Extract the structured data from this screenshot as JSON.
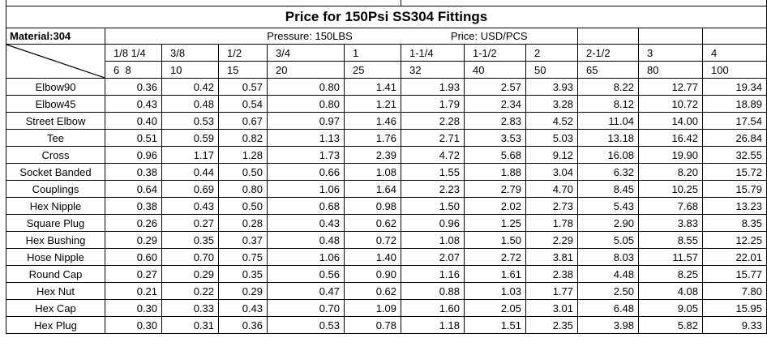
{
  "title": "Price for 150Psi SS304 Fittings",
  "material_label": "Material:304",
  "pressure_label": "Pressure: 150LBS",
  "price_label": "Price: USD/PCS",
  "sizes_inch": [
    "1/8 1/4",
    "3/8",
    "1/2",
    "3/4",
    "1",
    "1-1/4",
    "1-1/2",
    "2",
    "2-1/2",
    "3",
    "4"
  ],
  "sizes_mm": [
    "6  8",
    "10",
    "15",
    "20",
    "25",
    "32",
    "40",
    "50",
    "65",
    "80",
    "100"
  ],
  "rows": [
    {
      "name": "Elbow90",
      "prices": [
        "0.36",
        "0.42",
        "0.57",
        "0.80",
        "1.41",
        "1.93",
        "2.57",
        "3.93",
        "8.22",
        "12.77",
        "19.34"
      ]
    },
    {
      "name": "Elbow45",
      "prices": [
        "0.43",
        "0.48",
        "0.54",
        "0.80",
        "1.21",
        "1.79",
        "2.34",
        "3.28",
        "8.12",
        "10.72",
        "18.89"
      ]
    },
    {
      "name": "Street Elbow",
      "prices": [
        "0.40",
        "0.53",
        "0.67",
        "0.97",
        "1.46",
        "2.28",
        "2.83",
        "4.52",
        "11.04",
        "14.00",
        "17.54"
      ]
    },
    {
      "name": "Tee",
      "prices": [
        "0.51",
        "0.59",
        "0.82",
        "1.13",
        "1.76",
        "2.71",
        "3.53",
        "5.03",
        "13.18",
        "16.42",
        "26.84"
      ]
    },
    {
      "name": "Cross",
      "prices": [
        "0.96",
        "1.17",
        "1.28",
        "1.73",
        "2.39",
        "4.72",
        "5.68",
        "9.12",
        "16.08",
        "19.90",
        "32.55"
      ]
    },
    {
      "name": "Socket Banded",
      "prices": [
        "0.38",
        "0.44",
        "0.50",
        "0.66",
        "1.08",
        "1.55",
        "1.88",
        "3.04",
        "6.32",
        "8.20",
        "15.72"
      ]
    },
    {
      "name": "Couplings",
      "prices": [
        "0.64",
        "0.69",
        "0.80",
        "1.06",
        "1.64",
        "2.23",
        "2.79",
        "4.70",
        "8.45",
        "10.25",
        "15.79"
      ]
    },
    {
      "name": "Hex Nipple",
      "prices": [
        "0.38",
        "0.43",
        "0.50",
        "0.68",
        "0.98",
        "1.50",
        "2.02",
        "2.73",
        "5.43",
        "7.68",
        "13.23"
      ]
    },
    {
      "name": "Square Plug",
      "prices": [
        "0.26",
        "0.27",
        "0.28",
        "0.43",
        "0.62",
        "0.96",
        "1.25",
        "1.78",
        "2.90",
        "3.83",
        "8.35"
      ]
    },
    {
      "name": "Hex Bushing",
      "prices": [
        "0.29",
        "0.35",
        "0.37",
        "0.48",
        "0.72",
        "1.08",
        "1.50",
        "2.29",
        "5.05",
        "8.55",
        "12.25"
      ]
    },
    {
      "name": "Hose Nipple",
      "prices": [
        "0.60",
        "0.70",
        "0.75",
        "1.06",
        "1.40",
        "2.07",
        "2.72",
        "3.81",
        "8.03",
        "11.57",
        "22.01"
      ]
    },
    {
      "name": "Round Cap",
      "prices": [
        "0.27",
        "0.29",
        "0.35",
        "0.56",
        "0.90",
        "1.16",
        "1.61",
        "2.38",
        "4.48",
        "8.25",
        "15.77"
      ]
    },
    {
      "name": "Hex Nut",
      "prices": [
        "0.21",
        "0.22",
        "0.29",
        "0.47",
        "0.62",
        "0.88",
        "1.03",
        "1.77",
        "2.50",
        "4.08",
        "7.80"
      ]
    },
    {
      "name": "Hex Cap",
      "prices": [
        "0.30",
        "0.33",
        "0.43",
        "0.70",
        "1.09",
        "1.60",
        "2.05",
        "3.01",
        "6.48",
        "9.05",
        "15.95"
      ]
    },
    {
      "name": "Hex Plug",
      "prices": [
        "0.30",
        "0.31",
        "0.36",
        "0.53",
        "0.78",
        "1.18",
        "1.51",
        "2.35",
        "3.98",
        "5.82",
        "9.33"
      ]
    }
  ]
}
